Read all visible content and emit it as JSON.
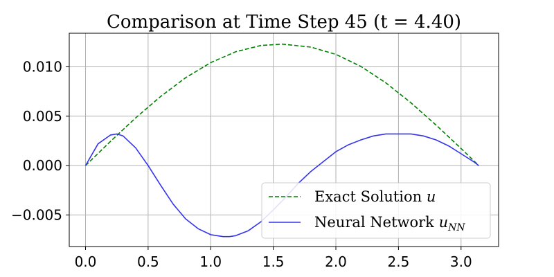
{
  "chart_data": {
    "type": "line",
    "title": "Comparison at Time Step 45 (t = 4.40)",
    "xlim": [
      -0.13,
      3.3
    ],
    "ylim": [
      -0.0082,
      0.0134
    ],
    "xticks": [
      0.0,
      0.5,
      1.0,
      1.5,
      2.0,
      2.5,
      3.0
    ],
    "xtick_labels": [
      "0.0",
      "0.5",
      "1.0",
      "1.5",
      "2.0",
      "2.5",
      "3.0"
    ],
    "yticks": [
      -0.005,
      0.0,
      0.005,
      0.01
    ],
    "ytick_labels": [
      "−0.005",
      "0.000",
      "0.005",
      "0.010"
    ],
    "grid": true,
    "legend_position": "lower-right",
    "series": [
      {
        "name": "Exact Solution u",
        "name_text": "Exact Solution ",
        "name_math": "u",
        "color": "#008000",
        "style": "dashed",
        "x": [
          0.0,
          0.2,
          0.4,
          0.6,
          0.8,
          1.0,
          1.2,
          1.4,
          1.5708,
          1.8,
          2.0,
          2.2,
          2.4,
          2.6,
          2.8,
          3.0,
          3.1416
        ],
        "y": [
          0.0,
          0.00246,
          0.00482,
          0.007,
          0.0089,
          0.01043,
          0.01153,
          0.01216,
          0.0123,
          0.012,
          0.01126,
          0.01004,
          0.00837,
          0.00635,
          0.00411,
          0.00173,
          0.0
        ]
      },
      {
        "name": "Neural Network u_NN",
        "name_text": "Neural Network ",
        "name_math": "u",
        "name_sub": "NN",
        "color": "#3333ee",
        "style": "solid",
        "x": [
          0.0,
          0.1,
          0.2,
          0.25,
          0.3,
          0.4,
          0.5,
          0.6,
          0.7,
          0.8,
          0.9,
          1.0,
          1.1,
          1.15,
          1.2,
          1.3,
          1.4,
          1.5,
          1.6,
          1.7,
          1.8,
          1.9,
          2.0,
          2.1,
          2.2,
          2.3,
          2.4,
          2.5,
          2.55,
          2.6,
          2.7,
          2.8,
          2.9,
          3.0,
          3.1,
          3.1416
        ],
        "y": [
          0.0,
          0.0022,
          0.0031,
          0.0032,
          0.003,
          0.0018,
          0.0,
          -0.002,
          -0.0039,
          -0.0054,
          -0.0064,
          -0.007,
          -0.0072,
          -0.0072,
          -0.0071,
          -0.0066,
          -0.0057,
          -0.0045,
          -0.0032,
          -0.0018,
          -0.0006,
          0.0004,
          0.0014,
          0.0021,
          0.0026,
          0.003,
          0.0032,
          0.0032,
          0.0032,
          0.0032,
          0.003,
          0.0026,
          0.002,
          0.0012,
          0.0004,
          0.0
        ]
      }
    ]
  }
}
